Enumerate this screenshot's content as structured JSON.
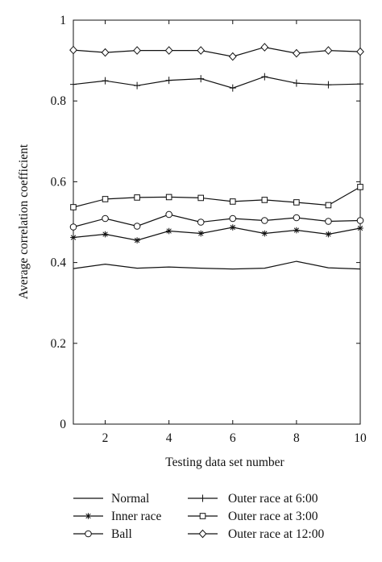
{
  "chart_data": {
    "type": "line",
    "xlabel": "Testing data set number",
    "ylabel": "Average correlation coefficient",
    "xlim": [
      1,
      10
    ],
    "ylim": [
      0,
      1
    ],
    "xticks": [
      2,
      4,
      6,
      8,
      10
    ],
    "yticks": [
      0,
      0.2,
      0.4,
      0.6,
      0.8,
      1
    ],
    "xtick_labels": [
      "2",
      "4",
      "6",
      "8",
      "10"
    ],
    "ytick_labels": [
      "0",
      "0.2",
      "0.4",
      "0.6",
      "0.8",
      "1"
    ],
    "grid": false,
    "legend_position": "below plot",
    "x": [
      1,
      2,
      3,
      4,
      5,
      6,
      7,
      8,
      9,
      10
    ],
    "series": [
      {
        "name": "Normal",
        "marker": "none",
        "values": [
          0.385,
          0.396,
          0.386,
          0.389,
          0.386,
          0.384,
          0.386,
          0.403,
          0.387,
          0.384
        ]
      },
      {
        "name": "Inner race",
        "marker": "asterisk",
        "values": [
          0.462,
          0.47,
          0.455,
          0.478,
          0.472,
          0.487,
          0.472,
          0.48,
          0.47,
          0.485
        ]
      },
      {
        "name": "Ball",
        "marker": "circle",
        "values": [
          0.488,
          0.509,
          0.49,
          0.519,
          0.5,
          0.509,
          0.504,
          0.511,
          0.502,
          0.504
        ]
      },
      {
        "name": "Outer race at 6:00",
        "marker": "plus",
        "values": [
          0.841,
          0.85,
          0.838,
          0.851,
          0.855,
          0.832,
          0.86,
          0.844,
          0.84,
          0.842
        ]
      },
      {
        "name": "Outer race at 3:00",
        "marker": "square",
        "values": [
          0.537,
          0.557,
          0.561,
          0.562,
          0.56,
          0.551,
          0.555,
          0.549,
          0.542,
          0.587
        ]
      },
      {
        "name": "Outer race at 12:00",
        "marker": "diamond",
        "values": [
          0.926,
          0.92,
          0.925,
          0.925,
          0.925,
          0.91,
          0.933,
          0.918,
          0.925,
          0.922
        ]
      }
    ]
  }
}
